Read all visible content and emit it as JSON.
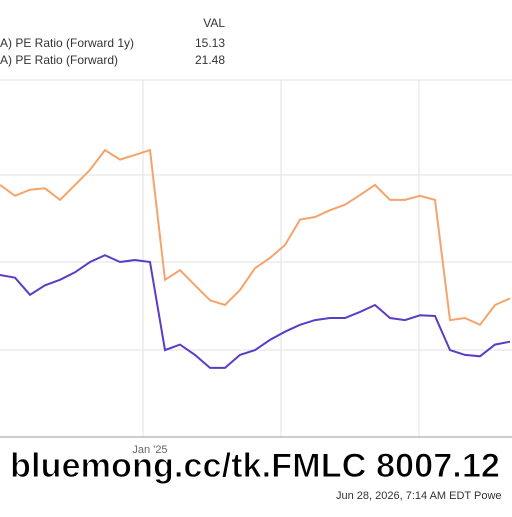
{
  "chart_data": {
    "type": "line",
    "legend_header": "VAL",
    "categories": [
      null,
      null,
      null,
      null,
      null,
      null,
      null,
      null,
      null,
      null,
      "Jan '25",
      null,
      null,
      null,
      null,
      null,
      null,
      null,
      null,
      null,
      null,
      null,
      null,
      null,
      null,
      null,
      null,
      null,
      null,
      null,
      null,
      null,
      null,
      null,
      null
    ],
    "series": [
      {
        "name": "A) PE Ratio (Forward 1y)",
        "legend_value": "15.13",
        "color": "#5b3cc4",
        "values": [
          24.9,
          24.5,
          22.0,
          23.4,
          24.2,
          25.3,
          26.8,
          27.8,
          26.8,
          27.1,
          26.8,
          13.9,
          14.7,
          13.2,
          11.3,
          11.3,
          13.2,
          13.9,
          15.4,
          16.6,
          17.6,
          18.3,
          18.6,
          18.6,
          19.5,
          20.5,
          18.6,
          18.3,
          19.0,
          18.9,
          13.9,
          13.2,
          13.0,
          14.7,
          15.13
        ]
      },
      {
        "name": "A) PE Ratio (Forward)",
        "legend_value": "21.48",
        "color": "#f4a46a",
        "values": [
          38.1,
          36.5,
          37.4,
          37.6,
          35.9,
          38.1,
          40.3,
          43.2,
          41.8,
          42.5,
          43.2,
          24.2,
          25.6,
          23.4,
          21.2,
          20.5,
          22.7,
          25.9,
          27.4,
          29.3,
          33.0,
          33.4,
          34.4,
          35.2,
          36.6,
          38.1,
          35.9,
          35.9,
          36.5,
          35.9,
          18.3,
          18.6,
          17.6,
          20.5,
          21.48
        ]
      }
    ],
    "ylim": [
      0,
      52
    ],
    "grid": true,
    "footer": "Jun 28, 2026, 7:14 AM EDT Powe",
    "watermark": "bluemong.cc/tk.FMLC 8007.12"
  }
}
